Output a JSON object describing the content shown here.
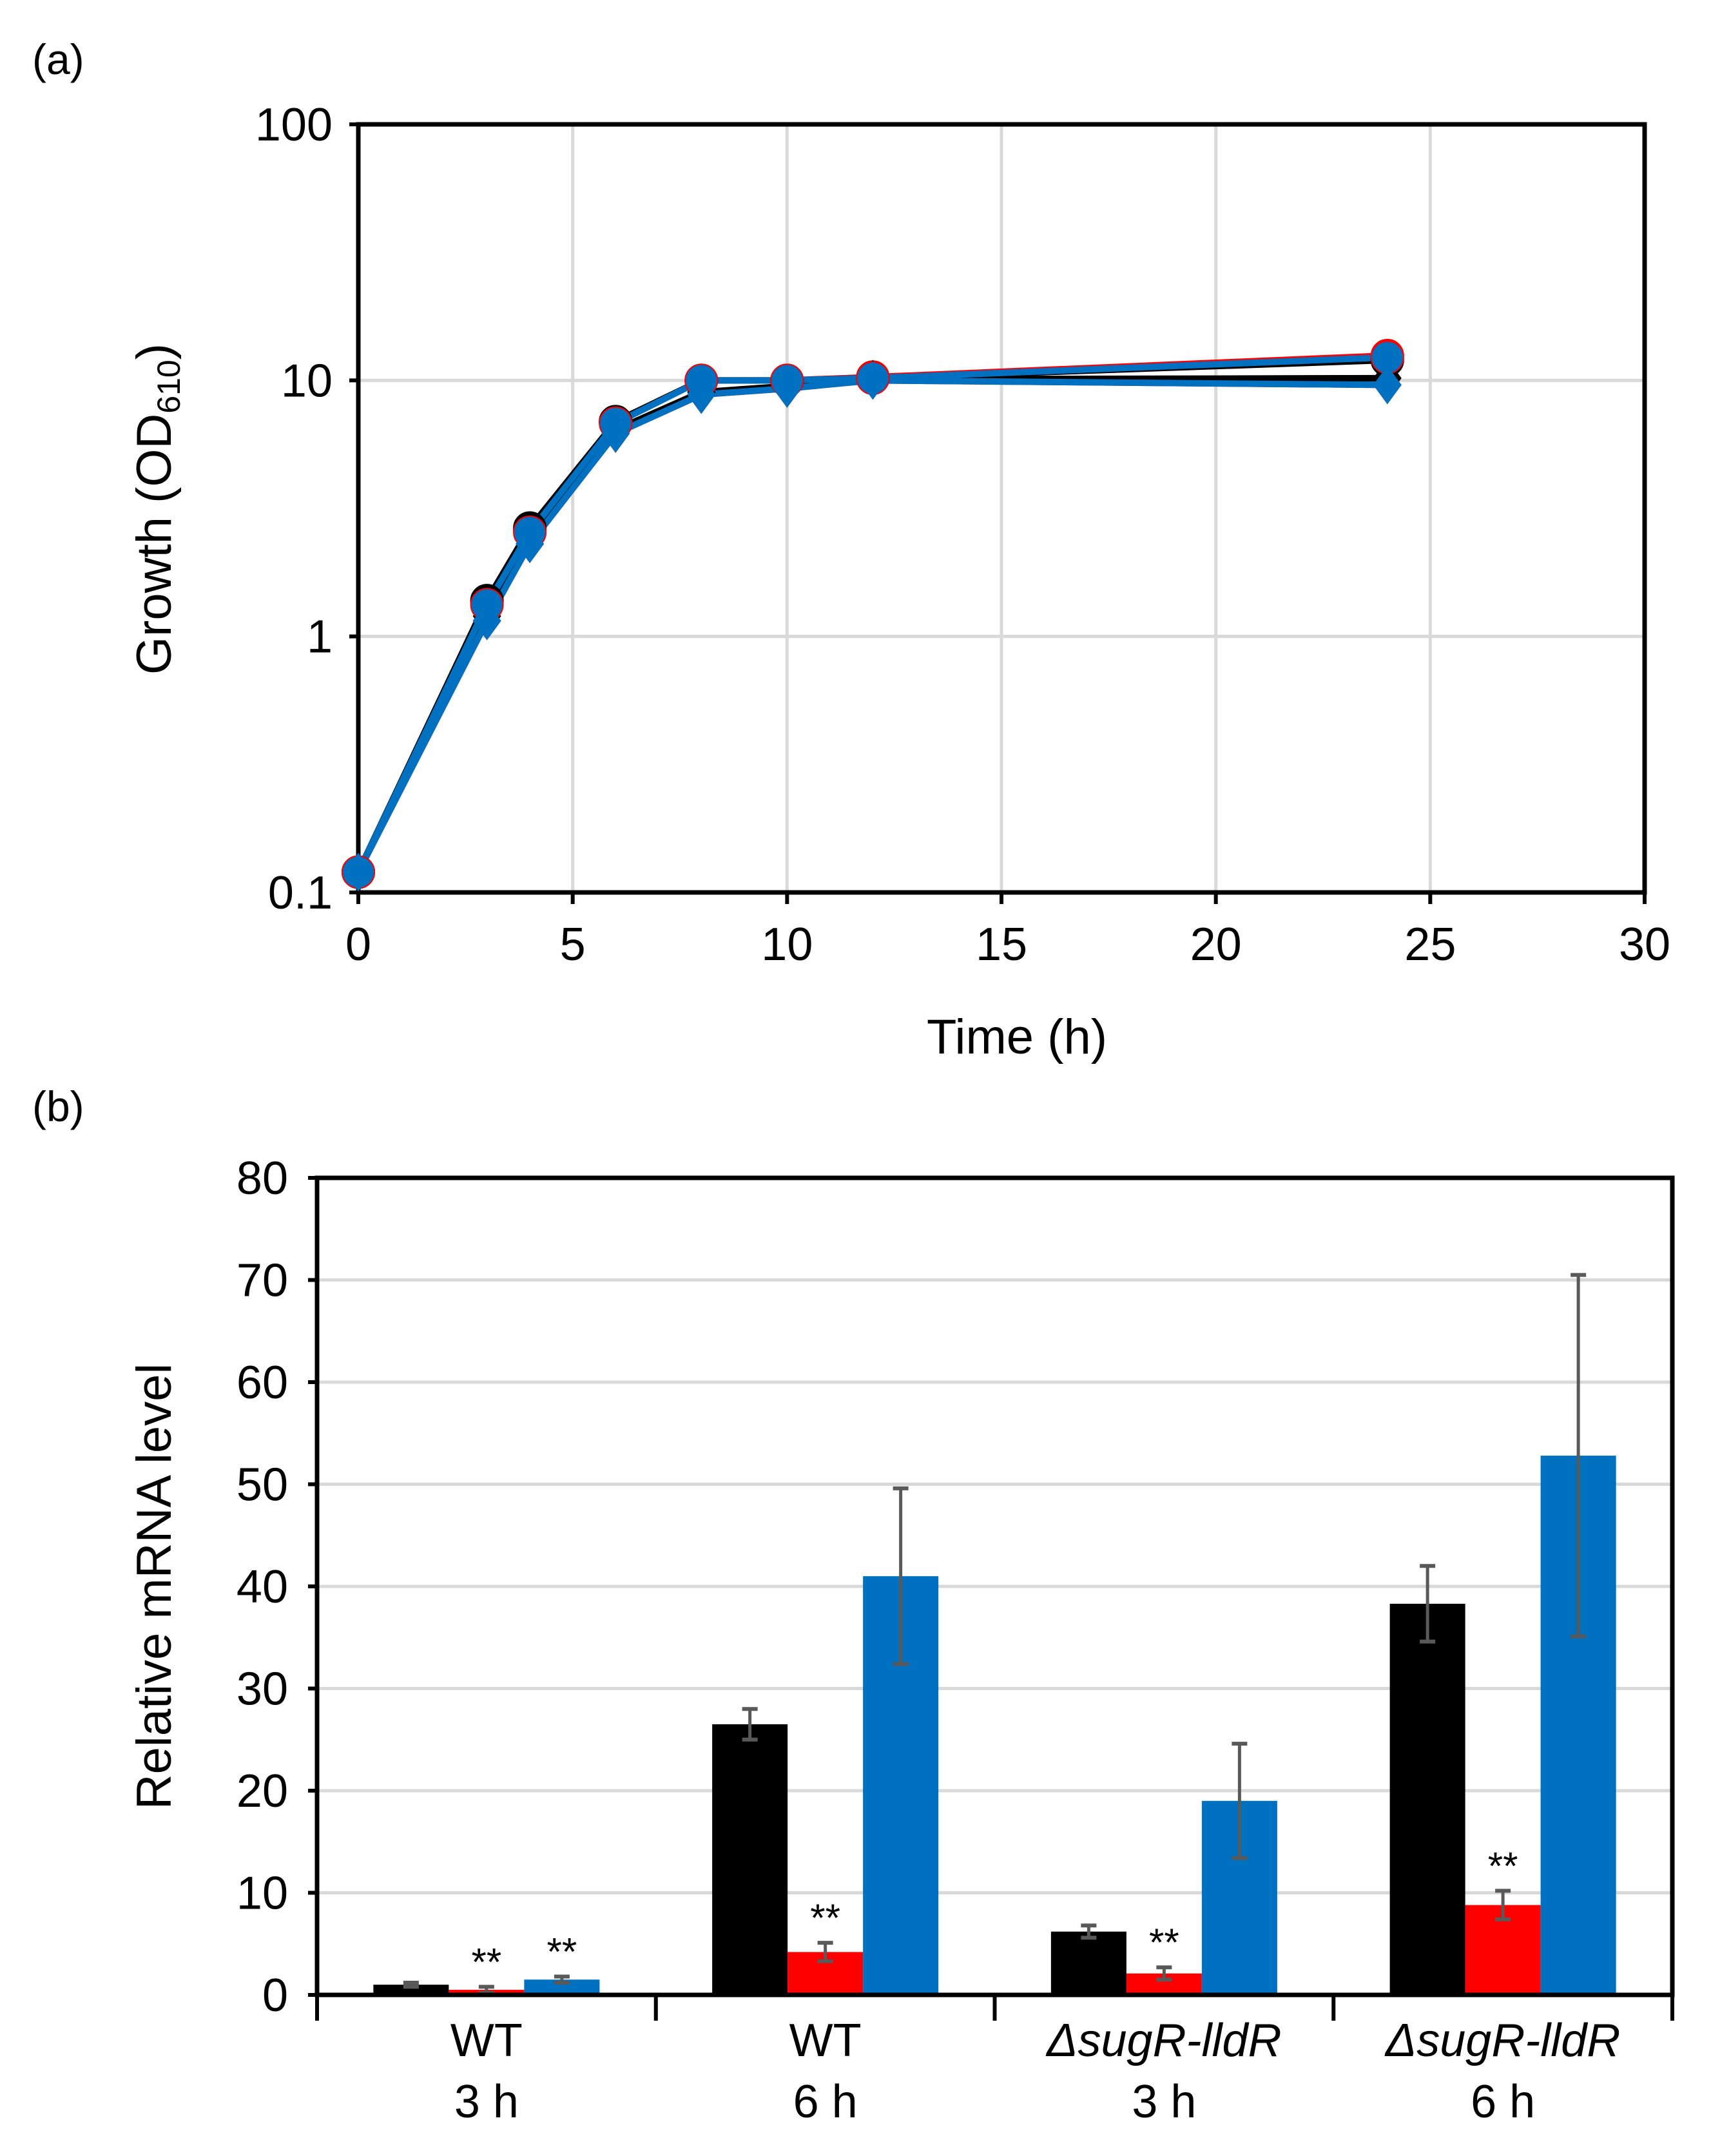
{
  "chart_data": [
    {
      "panel_label": "(a)",
      "type": "line",
      "xlabel": "Time (h)",
      "ylabel_main": "Growth (OD",
      "ylabel_sub": "610",
      "ylabel_end": ")",
      "yscale": "log",
      "xlim": [
        0,
        30
      ],
      "ylim": [
        0.1,
        100
      ],
      "xticks": [
        "0",
        "5",
        "10",
        "15",
        "20",
        "25",
        "30"
      ],
      "yticks": [
        "0.1",
        "1",
        "10",
        "100"
      ],
      "grid": true,
      "x": [
        0,
        3,
        4,
        6,
        8,
        10,
        12,
        24
      ],
      "series": [
        {
          "marker": "circle",
          "color": "#000000",
          "values": [
            0.12,
            1.38,
            2.65,
            6.9,
            10.0,
            10.0,
            10.2,
            12.0
          ]
        },
        {
          "marker": "circle",
          "color": "#FF0000",
          "values": [
            0.12,
            1.36,
            2.6,
            6.9,
            10.0,
            10.0,
            10.3,
            12.5
          ]
        },
        {
          "marker": "circle",
          "color": "#0070C0",
          "values": [
            0.12,
            1.33,
            2.55,
            6.8,
            10.0,
            10.0,
            10.2,
            12.3
          ]
        },
        {
          "marker": "diamond",
          "color": "#000000",
          "values": [
            0.12,
            1.2,
            2.4,
            6.4,
            9.0,
            9.5,
            10.1,
            10.2
          ]
        },
        {
          "marker": "diamond",
          "color": "#FF0000",
          "values": [
            0.12,
            1.15,
            2.3,
            6.2,
            8.8,
            9.3,
            10.0,
            9.6
          ]
        },
        {
          "marker": "diamond",
          "color": "#0070C0",
          "values": [
            0.12,
            1.15,
            2.3,
            6.2,
            8.8,
            9.3,
            10.0,
            9.6
          ]
        }
      ]
    },
    {
      "panel_label": "(b)",
      "type": "bar",
      "ylabel": "Relative mRNA level",
      "ylim": [
        0,
        80
      ],
      "yticks": [
        "0",
        "10",
        "20",
        "30",
        "40",
        "50",
        "60",
        "70",
        "80"
      ],
      "grid": true,
      "categories": [
        {
          "line1": "WT",
          "italic": false,
          "line2": "3 h"
        },
        {
          "line1": "WT",
          "italic": false,
          "line2": "6 h"
        },
        {
          "line1": "ΔsugR-lldR",
          "italic": true,
          "line2": "3 h"
        },
        {
          "line1": "ΔsugR-lldR",
          "italic": true,
          "line2": "6 h"
        }
      ],
      "series": [
        {
          "color": "#000000",
          "values": [
            1.0,
            26.5,
            6.2,
            38.3
          ],
          "errors": [
            0.2,
            1.5,
            0.6,
            3.7
          ],
          "annotations": [
            "",
            "",
            "",
            ""
          ]
        },
        {
          "color": "#FF0000",
          "values": [
            0.5,
            4.2,
            2.1,
            8.8
          ],
          "errors": [
            0.3,
            0.9,
            0.6,
            1.4
          ],
          "annotations": [
            "**",
            "**",
            "**",
            "**"
          ]
        },
        {
          "color": "#0070C0",
          "values": [
            1.5,
            41.0,
            19.0,
            52.8
          ],
          "errors": [
            0.3,
            8.6,
            5.6,
            17.7
          ],
          "annotations": [
            "**",
            "",
            "",
            ""
          ]
        }
      ]
    }
  ]
}
